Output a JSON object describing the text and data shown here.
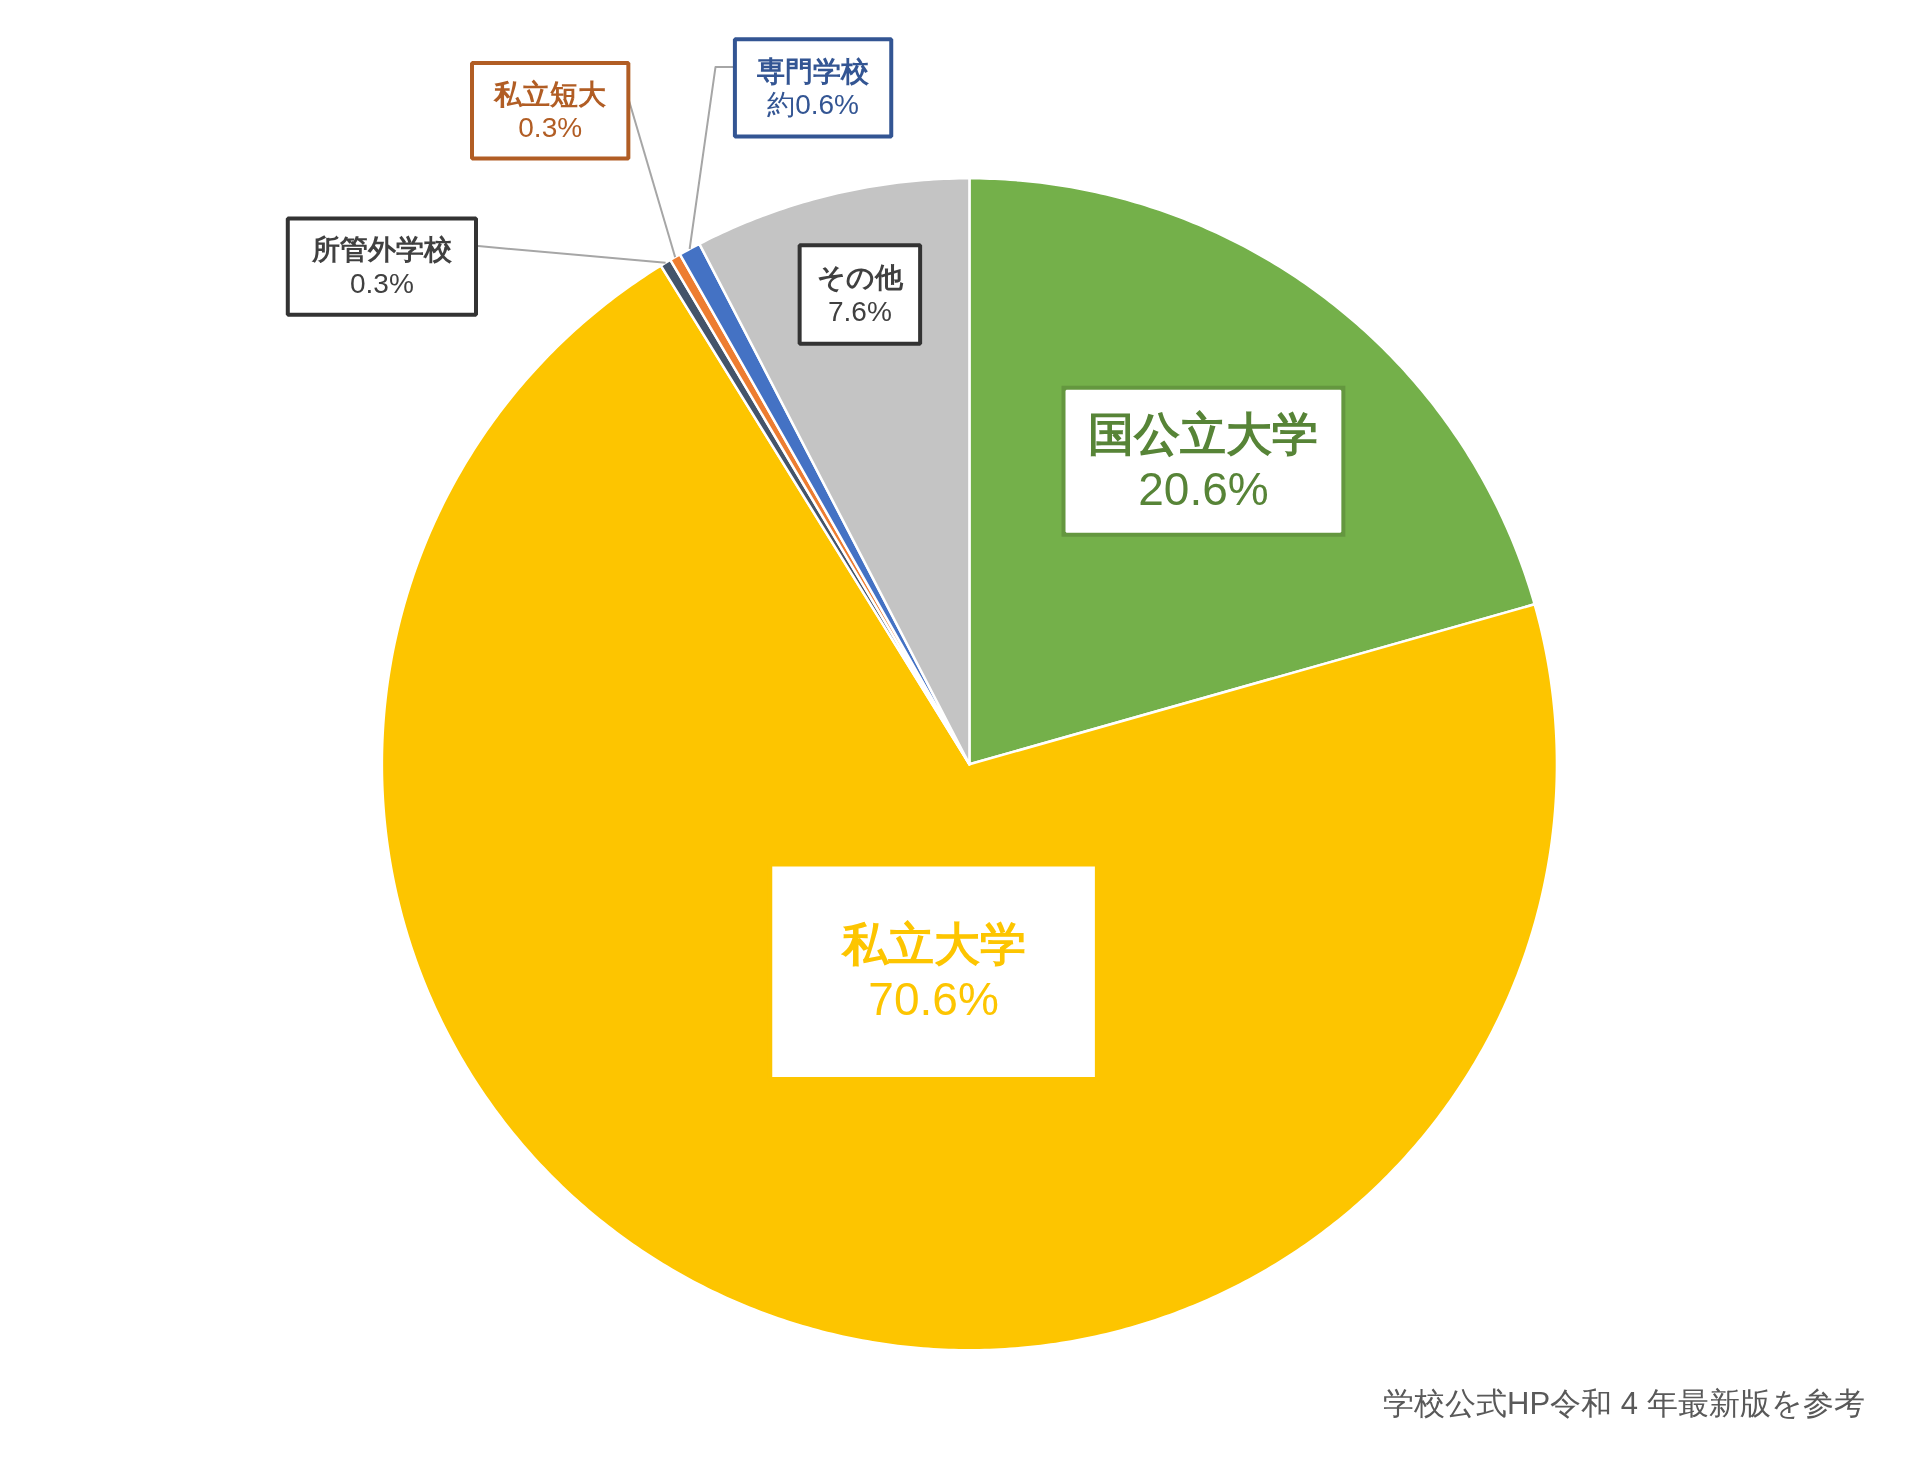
{
  "chart_data": {
    "type": "pie",
    "categories": [
      "国公立大学",
      "私立大学",
      "所管外学校",
      "私立短大",
      "専門学校",
      "その他"
    ],
    "values": [
      20.6,
      70.6,
      0.3,
      0.3,
      0.6,
      7.6
    ],
    "value_labels": [
      "20.6%",
      "70.6%",
      "0.3%",
      "0.3%",
      "約0.6%",
      "7.6%"
    ],
    "colors": [
      "#74b04a",
      "#fdc500",
      "#44546a",
      "#ed7d31",
      "#4472c4",
      "#c4c4c4"
    ],
    "annotations": [
      "学校公式HP令和 4 年最新版を参考"
    ]
  }
}
